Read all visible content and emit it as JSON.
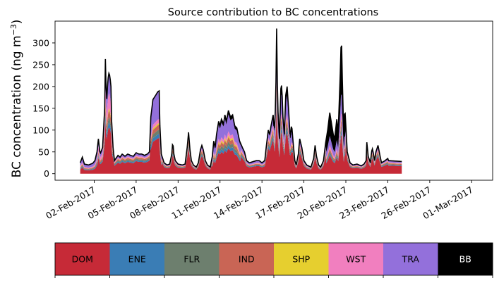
{
  "chart_data": {
    "type": "area",
    "stacked": true,
    "title": "Source contribution to BC concentrations",
    "xlabel": "",
    "ylabel": "BC concentration (ng m⁻³)",
    "ylabel_main": "BC concentration (ng m",
    "ylabel_sup": "−3",
    "ylabel_close": ")",
    "ylim": [
      -15,
      350
    ],
    "xlim_days": [
      -1.8,
      29.5
    ],
    "yticks": [
      0,
      50,
      100,
      150,
      200,
      250,
      300
    ],
    "xticks": [
      {
        "day": 1,
        "label": "02-Feb-2017"
      },
      {
        "day": 4,
        "label": "05-Feb-2017"
      },
      {
        "day": 7,
        "label": "08-Feb-2017"
      },
      {
        "day": 10,
        "label": "11-Feb-2017"
      },
      {
        "day": 13,
        "label": "14-Feb-2017"
      },
      {
        "day": 16,
        "label": "17-Feb-2017"
      },
      {
        "day": 19,
        "label": "20-Feb-2017"
      },
      {
        "day": 22,
        "label": "23-Feb-2017"
      },
      {
        "day": 25,
        "label": "26-Feb-2017"
      },
      {
        "day": 28,
        "label": "01-Mar-2017"
      }
    ],
    "total_line_color": "#000000",
    "series": [
      {
        "name": "DOM",
        "color": "#c62a37",
        "text_color": "#000000"
      },
      {
        "name": "ENE",
        "color": "#3a7db5",
        "text_color": "#000000"
      },
      {
        "name": "FLR",
        "color": "#6d7f6e",
        "text_color": "#000000"
      },
      {
        "name": "IND",
        "color": "#c96555",
        "text_color": "#000000"
      },
      {
        "name": "SHP",
        "color": "#e6cf2f",
        "text_color": "#000000"
      },
      {
        "name": "WST",
        "color": "#f17fbf",
        "text_color": "#000000"
      },
      {
        "name": "TRA",
        "color": "#9370db",
        "text_color": "#000000"
      },
      {
        "name": "BB",
        "color": "#000000",
        "text_color": "#ffffff"
      }
    ],
    "total_profile": [
      [
        0.0,
        25
      ],
      [
        0.15,
        38
      ],
      [
        0.3,
        22
      ],
      [
        0.6,
        20
      ],
      [
        0.9,
        24
      ],
      [
        1.05,
        30
      ],
      [
        1.2,
        50
      ],
      [
        1.3,
        80
      ],
      [
        1.42,
        45
      ],
      [
        1.6,
        60
      ],
      [
        1.75,
        150
      ],
      [
        1.8,
        263
      ],
      [
        1.88,
        160
      ],
      [
        1.95,
        200
      ],
      [
        2.03,
        232
      ],
      [
        2.12,
        225
      ],
      [
        2.2,
        200
      ],
      [
        2.25,
        120
      ],
      [
        2.35,
        60
      ],
      [
        2.45,
        30
      ],
      [
        2.55,
        35
      ],
      [
        2.7,
        42
      ],
      [
        2.85,
        38
      ],
      [
        3.0,
        45
      ],
      [
        3.2,
        40
      ],
      [
        3.4,
        45
      ],
      [
        3.6,
        42
      ],
      [
        3.8,
        40
      ],
      [
        4.0,
        48
      ],
      [
        4.2,
        45
      ],
      [
        4.4,
        45
      ],
      [
        4.6,
        42
      ],
      [
        4.8,
        45
      ],
      [
        4.95,
        50
      ],
      [
        5.05,
        130
      ],
      [
        5.2,
        170
      ],
      [
        5.4,
        180
      ],
      [
        5.55,
        188
      ],
      [
        5.65,
        190
      ],
      [
        5.7,
        110
      ],
      [
        5.8,
        45
      ],
      [
        6.0,
        25
      ],
      [
        6.2,
        20
      ],
      [
        6.4,
        22
      ],
      [
        6.55,
        45
      ],
      [
        6.62,
        75
      ],
      [
        6.7,
        45
      ],
      [
        6.8,
        30
      ],
      [
        7.0,
        22
      ],
      [
        7.3,
        20
      ],
      [
        7.5,
        22
      ],
      [
        7.65,
        60
      ],
      [
        7.75,
        95
      ],
      [
        7.85,
        55
      ],
      [
        7.95,
        30
      ],
      [
        8.1,
        20
      ],
      [
        8.3,
        15
      ],
      [
        8.45,
        25
      ],
      [
        8.6,
        55
      ],
      [
        8.7,
        65
      ],
      [
        8.8,
        55
      ],
      [
        8.95,
        30
      ],
      [
        9.1,
        20
      ],
      [
        9.3,
        15
      ],
      [
        9.45,
        40
      ],
      [
        9.55,
        75
      ],
      [
        9.65,
        60
      ],
      [
        9.75,
        90
      ],
      [
        9.9,
        120
      ],
      [
        10.0,
        110
      ],
      [
        10.1,
        125
      ],
      [
        10.25,
        115
      ],
      [
        10.35,
        135
      ],
      [
        10.45,
        120
      ],
      [
        10.6,
        145
      ],
      [
        10.75,
        130
      ],
      [
        10.9,
        135
      ],
      [
        11.05,
        110
      ],
      [
        11.2,
        105
      ],
      [
        11.4,
        75
      ],
      [
        11.6,
        60
      ],
      [
        11.75,
        50
      ],
      [
        11.9,
        30
      ],
      [
        12.1,
        25
      ],
      [
        12.4,
        28
      ],
      [
        12.6,
        30
      ],
      [
        12.8,
        30
      ],
      [
        13.0,
        25
      ],
      [
        13.2,
        30
      ],
      [
        13.3,
        60
      ],
      [
        13.45,
        100
      ],
      [
        13.55,
        90
      ],
      [
        13.65,
        110
      ],
      [
        13.8,
        135
      ],
      [
        13.88,
        95
      ],
      [
        13.98,
        160
      ],
      [
        14.05,
        333
      ],
      [
        14.12,
        160
      ],
      [
        14.25,
        80
      ],
      [
        14.35,
        195
      ],
      [
        14.42,
        205
      ],
      [
        14.5,
        130
      ],
      [
        14.6,
        90
      ],
      [
        14.7,
        180
      ],
      [
        14.8,
        200
      ],
      [
        14.92,
        140
      ],
      [
        15.02,
        80
      ],
      [
        15.12,
        115
      ],
      [
        15.22,
        75
      ],
      [
        15.35,
        30
      ],
      [
        15.45,
        20
      ],
      [
        15.6,
        45
      ],
      [
        15.7,
        80
      ],
      [
        15.85,
        60
      ],
      [
        16.0,
        30
      ],
      [
        16.2,
        20
      ],
      [
        16.5,
        15
      ],
      [
        16.7,
        35
      ],
      [
        16.8,
        65
      ],
      [
        16.9,
        40
      ],
      [
        17.05,
        20
      ],
      [
        17.2,
        15
      ],
      [
        17.4,
        30
      ],
      [
        17.55,
        70
      ],
      [
        17.7,
        100
      ],
      [
        17.85,
        140
      ],
      [
        17.95,
        120
      ],
      [
        18.1,
        90
      ],
      [
        18.2,
        80
      ],
      [
        18.35,
        125
      ],
      [
        18.45,
        95
      ],
      [
        18.6,
        230
      ],
      [
        18.68,
        325
      ],
      [
        18.75,
        215
      ],
      [
        18.85,
        90
      ],
      [
        18.92,
        155
      ],
      [
        19.0,
        110
      ],
      [
        19.1,
        50
      ],
      [
        19.3,
        25
      ],
      [
        19.5,
        20
      ],
      [
        19.8,
        22
      ],
      [
        20.1,
        18
      ],
      [
        20.3,
        22
      ],
      [
        20.45,
        30
      ],
      [
        20.5,
        72
      ],
      [
        20.6,
        40
      ],
      [
        20.75,
        25
      ],
      [
        20.88,
        60
      ],
      [
        20.98,
        45
      ],
      [
        21.05,
        30
      ],
      [
        21.15,
        50
      ],
      [
        21.3,
        65
      ],
      [
        21.45,
        40
      ],
      [
        21.55,
        25
      ],
      [
        21.8,
        30
      ],
      [
        22.0,
        35
      ],
      [
        22.05,
        30
      ],
      [
        23.0,
        28
      ]
    ],
    "fractions": [
      {
        "until": 1.3,
        "f": [
          0.38,
          0.06,
          0.06,
          0.07,
          0.02,
          0.1,
          0.31,
          0.0
        ]
      },
      {
        "until": 2.3,
        "f": [
          0.46,
          0.05,
          0.05,
          0.07,
          0.02,
          0.15,
          0.2,
          0.0
        ]
      },
      {
        "until": 5.0,
        "f": [
          0.6,
          0.06,
          0.07,
          0.07,
          0.02,
          0.06,
          0.12,
          0.0
        ]
      },
      {
        "until": 5.8,
        "f": [
          0.43,
          0.05,
          0.05,
          0.06,
          0.02,
          0.05,
          0.34,
          0.0
        ]
      },
      {
        "until": 9.4,
        "f": [
          0.62,
          0.05,
          0.06,
          0.07,
          0.02,
          0.06,
          0.12,
          0.0
        ]
      },
      {
        "until": 11.5,
        "f": [
          0.4,
          0.05,
          0.06,
          0.07,
          0.03,
          0.06,
          0.27,
          0.06
        ]
      },
      {
        "until": 13.9,
        "f": [
          0.58,
          0.05,
          0.06,
          0.06,
          0.02,
          0.06,
          0.13,
          0.04
        ]
      },
      {
        "until": 15.2,
        "f": [
          0.47,
          0.04,
          0.05,
          0.05,
          0.02,
          0.05,
          0.22,
          0.1
        ]
      },
      {
        "until": 17.6,
        "f": [
          0.6,
          0.05,
          0.06,
          0.06,
          0.02,
          0.06,
          0.12,
          0.03
        ]
      },
      {
        "until": 19.0,
        "f": [
          0.3,
          0.03,
          0.04,
          0.04,
          0.01,
          0.05,
          0.15,
          0.38
        ]
      },
      {
        "until": 99.0,
        "f": [
          0.62,
          0.05,
          0.06,
          0.06,
          0.02,
          0.06,
          0.13,
          0.0
        ]
      }
    ]
  }
}
